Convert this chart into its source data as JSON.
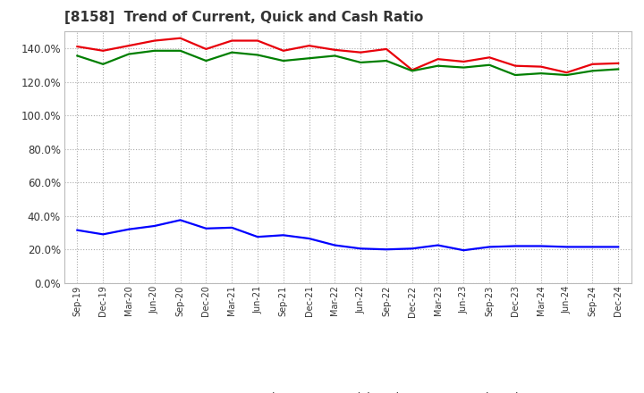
{
  "title": "[8158]  Trend of Current, Quick and Cash Ratio",
  "labels": [
    "Sep-19",
    "Dec-19",
    "Mar-20",
    "Jun-20",
    "Sep-20",
    "Dec-20",
    "Mar-21",
    "Jun-21",
    "Sep-21",
    "Dec-21",
    "Mar-22",
    "Jun-22",
    "Sep-22",
    "Dec-22",
    "Mar-23",
    "Jun-23",
    "Sep-23",
    "Dec-23",
    "Mar-24",
    "Jun-24",
    "Sep-24",
    "Dec-24"
  ],
  "current_ratio": [
    141.0,
    138.5,
    141.5,
    144.5,
    146.0,
    139.5,
    144.5,
    144.5,
    138.5,
    141.5,
    139.0,
    137.5,
    139.5,
    127.0,
    133.5,
    132.0,
    134.5,
    129.5,
    129.0,
    125.5,
    130.5,
    131.0
  ],
  "quick_ratio": [
    135.5,
    130.5,
    136.5,
    138.5,
    138.5,
    132.5,
    137.5,
    136.0,
    132.5,
    134.0,
    135.5,
    131.5,
    132.5,
    126.5,
    129.5,
    128.5,
    130.0,
    124.0,
    125.0,
    124.0,
    126.5,
    127.5
  ],
  "cash_ratio": [
    31.5,
    29.0,
    32.0,
    34.0,
    37.5,
    32.5,
    33.0,
    27.5,
    28.5,
    26.5,
    22.5,
    20.5,
    20.0,
    20.5,
    22.5,
    19.5,
    21.5,
    22.0,
    22.0,
    21.5,
    21.5,
    21.5
  ],
  "current_color": "#e8000a",
  "quick_color": "#007f00",
  "cash_color": "#0000ff",
  "ylim": [
    0,
    150
  ],
  "yticks": [
    0,
    20,
    40,
    60,
    80,
    100,
    120,
    140
  ],
  "background_color": "#ffffff",
  "grid_color": "#aaaaaa",
  "line_width": 1.6
}
